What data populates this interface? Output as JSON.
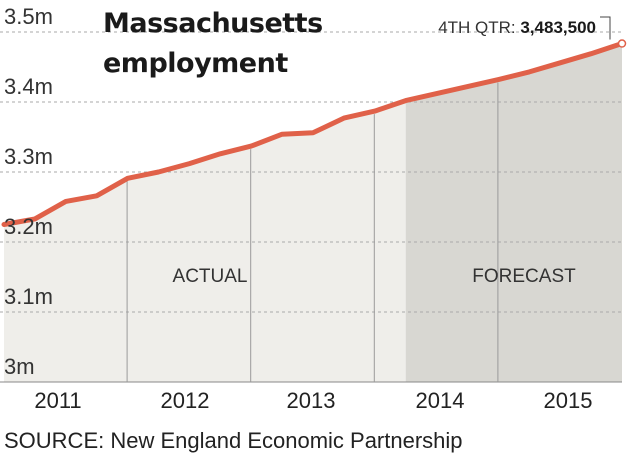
{
  "chart_data": {
    "type": "area",
    "title_lines": [
      "Massachusetts",
      "employment"
    ],
    "source": "SOURCE: New England Economic Partnership",
    "x_tick_labels": [
      "2011",
      "2012",
      "2013",
      "2014",
      "2015"
    ],
    "y_tick_labels": [
      "3m",
      "3.1m",
      "3.2m",
      "3.3m",
      "3.4m",
      "3.5m"
    ],
    "ylim": [
      3.0,
      3.5
    ],
    "grid": "horizontal dashed",
    "x": [
      "2010 Q4",
      "2011 Q1",
      "2011 Q2",
      "2011 Q3",
      "2011 Q4",
      "2012 Q1",
      "2012 Q2",
      "2012 Q3",
      "2012 Q4",
      "2013 Q1",
      "2013 Q2",
      "2013 Q3",
      "2013 Q4",
      "2014 Q1",
      "2014 Q2",
      "2014 Q3",
      "2014 Q4",
      "2015 Q1",
      "2015 Q2",
      "2015 Q3",
      "2015 Q4"
    ],
    "series": [
      {
        "values": [
          3.225,
          3.233,
          3.258,
          3.266,
          3.291,
          3.3,
          3.312,
          3.326,
          3.337,
          3.354,
          3.356,
          3.377,
          3.387,
          3.402,
          3.412,
          3.422,
          3.432,
          3.443,
          3.456,
          3.469,
          3.4835
        ]
      }
    ],
    "annotations": [
      {
        "label": "ACTUAL",
        "region": "2010 Q4 – 2014 Q1"
      },
      {
        "label": "FORECAST",
        "region": "2014 Q1 – 2015 Q4"
      }
    ],
    "callout": {
      "prefix": "4TH QTR: ",
      "value": "3,483,500"
    },
    "colors": {
      "line": "#e06149",
      "actual_fill": "#efeeea",
      "forecast_fill": "#d8d7d2",
      "grid": "#aaaaaa",
      "text": "#333333"
    }
  }
}
